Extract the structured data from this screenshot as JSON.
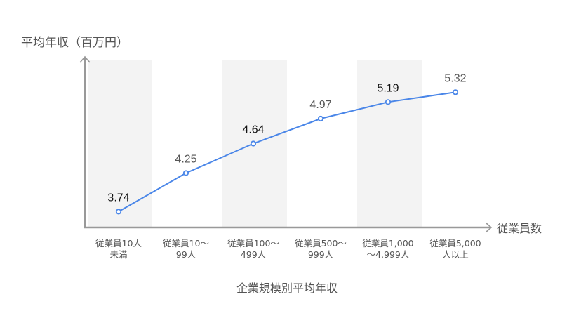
{
  "chart_data": {
    "type": "line",
    "title": "企業規模別平均年収",
    "ylabel": "平均年収（百万円）",
    "xlabel": "従業員数",
    "categories": [
      [
        "従業員10人",
        "未満"
      ],
      [
        "従業員10〜",
        "99人"
      ],
      [
        "従業員100〜",
        "499人"
      ],
      [
        "従業員500〜",
        "999人"
      ],
      [
        "従業員1,000",
        "〜4,999人"
      ],
      [
        "従業員5,000",
        "人以上"
      ]
    ],
    "series": [
      {
        "name": "平均年収",
        "values": [
          3.74,
          4.25,
          4.64,
          4.97,
          5.19,
          5.32
        ]
      }
    ],
    "value_labels": [
      "3.74",
      "4.25",
      "4.64",
      "4.97",
      "5.19",
      "5.32"
    ],
    "ylim": [
      3.53,
      5.75
    ],
    "grid": false,
    "legend": "none",
    "colors": {
      "line": "#4a86e8",
      "band": "#f3f3f3",
      "axis": "#999999",
      "label_dark": "#111111",
      "label_gray": "#555555"
    }
  }
}
